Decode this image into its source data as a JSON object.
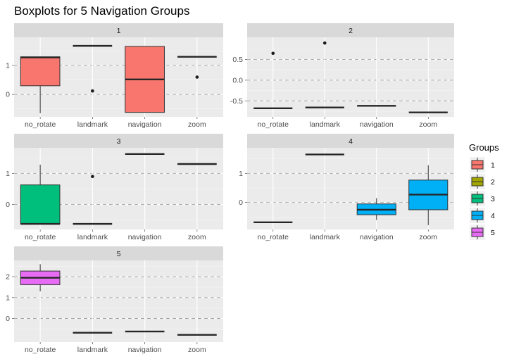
{
  "chart_data": {
    "type": "boxplot",
    "title": "Boxplots for 5 Navigation Groups",
    "categories": [
      "no_rotate",
      "landmark",
      "navigation",
      "zoom"
    ],
    "legend": {
      "title": "Groups",
      "placement": "right",
      "items": [
        {
          "label": "1",
          "color": "#F8766D"
        },
        {
          "label": "2",
          "color": "#A3A500"
        },
        {
          "label": "3",
          "color": "#00BF7D"
        },
        {
          "label": "4",
          "color": "#00B0F6"
        },
        {
          "label": "5",
          "color": "#E76BF3"
        }
      ]
    },
    "panels": [
      {
        "label": "1",
        "group": 1,
        "ylim": [
          -0.65,
          1.85
        ],
        "yticks": [
          0,
          1
        ],
        "boxes": [
          {
            "category": "no_rotate",
            "min": -0.65,
            "q1": 0.3,
            "median": 1.28,
            "q3": 1.3,
            "max": 1.3,
            "outliers": []
          },
          {
            "category": "landmark",
            "min": 1.68,
            "q1": 1.68,
            "median": 1.68,
            "q3": 1.68,
            "max": 1.68,
            "outliers": [
              0.12
            ]
          },
          {
            "category": "navigation",
            "min": -0.62,
            "q1": -0.62,
            "median": 0.52,
            "q3": 1.66,
            "max": 1.66,
            "outliers": []
          },
          {
            "category": "zoom",
            "min": 1.3,
            "q1": 1.3,
            "median": 1.3,
            "q3": 1.3,
            "max": 1.3,
            "outliers": [
              0.6
            ]
          }
        ]
      },
      {
        "label": "2",
        "group": 2,
        "ylim": [
          -0.8,
          0.95
        ],
        "yticks": [
          -0.5,
          0.0,
          0.5
        ],
        "boxes": [
          {
            "category": "no_rotate",
            "min": -0.68,
            "q1": -0.68,
            "median": -0.68,
            "q3": -0.68,
            "max": -0.68,
            "outliers": [
              0.65
            ]
          },
          {
            "category": "landmark",
            "min": -0.66,
            "q1": -0.66,
            "median": -0.66,
            "q3": -0.66,
            "max": -0.66,
            "outliers": [
              0.9
            ]
          },
          {
            "category": "navigation",
            "min": -0.62,
            "q1": -0.62,
            "median": -0.62,
            "q3": -0.62,
            "max": -0.62,
            "outliers": []
          },
          {
            "category": "zoom",
            "min": -0.78,
            "q1": -0.78,
            "median": -0.78,
            "q3": -0.78,
            "max": -0.78,
            "outliers": []
          }
        ]
      },
      {
        "label": "3",
        "group": 3,
        "ylim": [
          -0.68,
          1.7
        ],
        "yticks": [
          0,
          1
        ],
        "boxes": [
          {
            "category": "no_rotate",
            "min": -0.62,
            "q1": -0.62,
            "median": -0.62,
            "q3": 0.63,
            "max": 1.28,
            "outliers": []
          },
          {
            "category": "landmark",
            "min": -0.62,
            "q1": -0.62,
            "median": -0.62,
            "q3": -0.62,
            "max": -0.62,
            "outliers": [
              0.9
            ]
          },
          {
            "category": "navigation",
            "min": 1.62,
            "q1": 1.62,
            "median": 1.62,
            "q3": 1.62,
            "max": 1.62,
            "outliers": []
          },
          {
            "category": "zoom",
            "min": 1.3,
            "q1": 1.3,
            "median": 1.3,
            "q3": 1.3,
            "max": 1.3,
            "outliers": []
          }
        ]
      },
      {
        "label": "4",
        "group": 4,
        "ylim": [
          -0.8,
          1.75
        ],
        "yticks": [
          0,
          1
        ],
        "boxes": [
          {
            "category": "no_rotate",
            "min": -0.68,
            "q1": -0.68,
            "median": -0.68,
            "q3": -0.68,
            "max": -0.68,
            "outliers": []
          },
          {
            "category": "landmark",
            "min": 1.65,
            "q1": 1.65,
            "median": 1.65,
            "q3": 1.65,
            "max": 1.65,
            "outliers": []
          },
          {
            "category": "navigation",
            "min": -0.6,
            "q1": -0.42,
            "median": -0.25,
            "q3": -0.05,
            "max": 0.15,
            "outliers": []
          },
          {
            "category": "zoom",
            "min": -0.78,
            "q1": -0.25,
            "median": 0.27,
            "q3": 0.77,
            "max": 1.28,
            "outliers": []
          }
        ]
      },
      {
        "label": "5",
        "group": 5,
        "ylim": [
          -0.95,
          2.6
        ],
        "yticks": [
          0,
          1,
          2
        ],
        "boxes": [
          {
            "category": "no_rotate",
            "min": 1.3,
            "q1": 1.62,
            "median": 1.95,
            "q3": 2.27,
            "max": 2.6,
            "outliers": []
          },
          {
            "category": "landmark",
            "min": -0.68,
            "q1": -0.68,
            "median": -0.68,
            "q3": -0.68,
            "max": -0.68,
            "outliers": []
          },
          {
            "category": "navigation",
            "min": -0.62,
            "q1": -0.62,
            "median": -0.62,
            "q3": -0.62,
            "max": -0.62,
            "outliers": []
          },
          {
            "category": "zoom",
            "min": -0.78,
            "q1": -0.78,
            "median": -0.78,
            "q3": -0.78,
            "max": -0.78,
            "outliers": []
          }
        ]
      }
    ],
    "grid": true,
    "reference_lines": "dashed at y ticks"
  }
}
